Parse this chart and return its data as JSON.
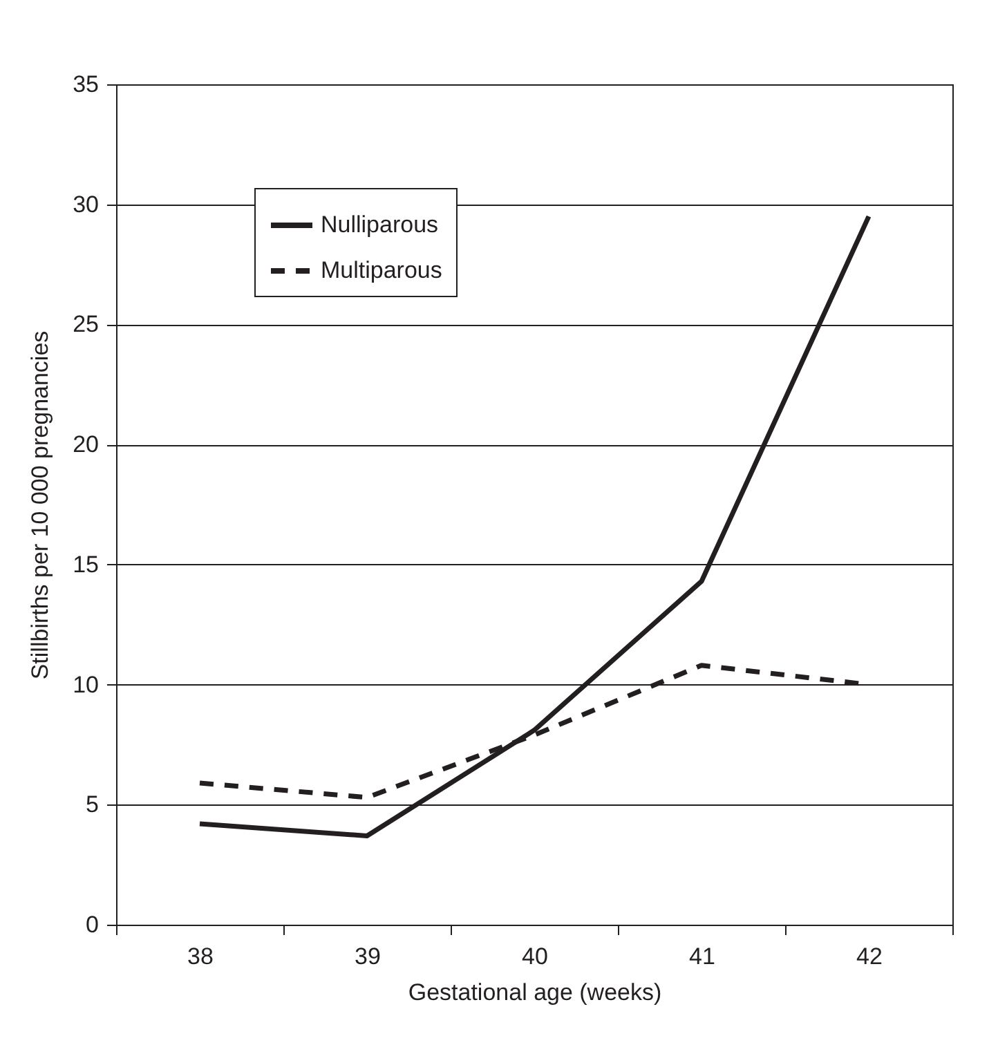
{
  "chart_data": {
    "type": "line",
    "xlabel": "Gestational age (weeks)",
    "ylabel": "Stillbirths per 10 000 pregnancies",
    "categories": [
      "38",
      "39",
      "40",
      "41",
      "42"
    ],
    "series": [
      {
        "name": "Nulliparous",
        "color": "#231f20",
        "line_style": "solid",
        "values": [
          4.2,
          3.7,
          8.1,
          14.3,
          29.5
        ]
      },
      {
        "name": "Multiparous",
        "color": "#231f20",
        "line_style": "dashed",
        "values": [
          5.9,
          5.3,
          7.9,
          10.8,
          10.0
        ]
      }
    ],
    "ylim": [
      0,
      35
    ],
    "yticks": [
      0,
      5,
      10,
      15,
      20,
      25,
      30,
      35
    ],
    "grid": "y",
    "legend": "top left",
    "marker": "none"
  }
}
